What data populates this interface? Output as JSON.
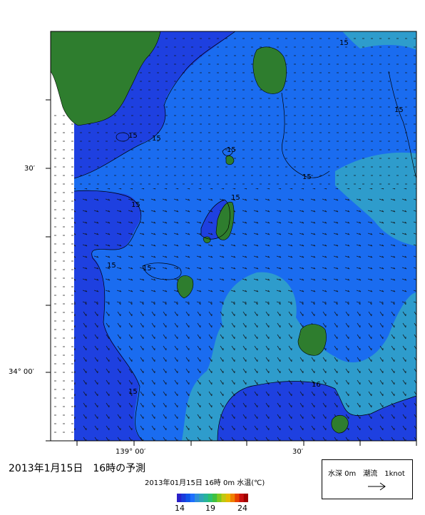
{
  "title": "2013年1月15日　16時の予測",
  "subtitle": "2013年01月15日 16時 0m 水温(℃)",
  "axis": {
    "lat_labels": [
      "30′",
      "34° 00′"
    ],
    "lon_labels": [
      "139° 00′",
      "30′"
    ]
  },
  "contours": [
    "15",
    "15",
    "15",
    "15",
    "15",
    "15",
    "15",
    "15",
    "15",
    "15",
    "16"
  ],
  "legend": {
    "text": "水深 0m　潮流　1knot",
    "arrow_icon": "right-arrow-icon"
  },
  "colorbar": {
    "ticks": [
      "14",
      "19",
      "24"
    ],
    "colors": [
      "#2a20c8",
      "#1a3bdc",
      "#1055e8",
      "#1e6fff",
      "#2f8fd8",
      "#2fa3b8",
      "#27b49a",
      "#2cc070",
      "#40c040",
      "#80c820",
      "#c0c810",
      "#e8b800",
      "#f08000",
      "#e84000",
      "#c81010",
      "#a00000"
    ]
  },
  "map_colors": {
    "land": "#2e7d2e",
    "water_deep": "#1e40e0",
    "water_mid": "#1a6cf0",
    "water_teal": "#2e9ccc",
    "no_data": "#ffffff"
  }
}
